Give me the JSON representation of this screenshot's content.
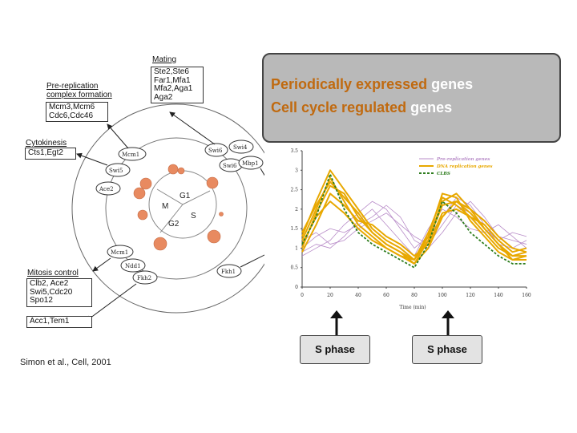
{
  "title_box": {
    "line1_highlight": "Periodically expressed",
    "line1_rest": "genes",
    "line2_highlight": "Cell cycle regulated",
    "line2_rest": "genes",
    "highlight_color": "#c06a10",
    "rest_color": "#ffffff"
  },
  "gene_groups": {
    "mating": {
      "title": "Mating",
      "genes": [
        "Ste2,Ste6",
        "Far1,Mfa1",
        "Mfa2,Aga1",
        "Aga2"
      ]
    },
    "prereplication": {
      "title_line1": "Pre-replication",
      "title_line2": "complex formation",
      "genes": [
        "Mcm3,Mcm6",
        "Cdc6,Cdc46"
      ]
    },
    "cytokinesis": {
      "title": "Cytokinesis",
      "genes": [
        "Cts1,Egt2"
      ]
    },
    "mitosis": {
      "title": "Mitosis control",
      "genes": [
        "Clb2, Ace2",
        "Swi5,Cdc20",
        "Spo12"
      ]
    },
    "extra": {
      "genes": [
        "Acc1,Tem1"
      ]
    }
  },
  "cycle_diagram": {
    "phases": {
      "g1": "G1",
      "s": "S",
      "g2": "G2",
      "m": "M"
    },
    "nodes": [
      "Mcm1",
      "Swi5",
      "Ace2",
      "Swi4",
      "Swi6",
      "Swi6",
      "Mbp1",
      "Mcm1",
      "Ndd1",
      "Fkh2",
      "Fkh1"
    ]
  },
  "chart_data": {
    "type": "line",
    "xlabel": "Time (min)",
    "ylabel": "",
    "x_ticks": [
      0,
      20,
      40,
      60,
      80,
      100,
      120,
      140,
      160
    ],
    "y_ticks": [
      0,
      0.5,
      1,
      1.5,
      2,
      2.5,
      3,
      3.5
    ],
    "xlim": [
      0,
      160
    ],
    "ylim": [
      0,
      3.5
    ],
    "x": [
      0,
      10,
      20,
      30,
      40,
      50,
      60,
      70,
      80,
      90,
      100,
      110,
      120,
      130,
      140,
      150,
      160
    ],
    "legend": [
      "Pre-replication genes",
      "DNA replication genes",
      "CLBS"
    ],
    "series": [
      {
        "name": "Pre-replication genes",
        "values": [
          0.8,
          1.0,
          1.2,
          1.6,
          1.9,
          2.2,
          2.0,
          1.5,
          1.0,
          1.3,
          1.8,
          2.3,
          2.1,
          1.6,
          1.1,
          1.0,
          1.2
        ]
      },
      {
        "name": "Pre-replication genes",
        "values": [
          1.0,
          1.3,
          1.5,
          1.4,
          1.6,
          1.8,
          2.1,
          1.8,
          1.2,
          1.0,
          1.4,
          1.9,
          2.2,
          1.8,
          1.3,
          1.2,
          1.1
        ]
      },
      {
        "name": "Pre-replication genes",
        "values": [
          0.9,
          1.1,
          1.0,
          1.3,
          1.7,
          2.0,
          1.6,
          1.2,
          0.8,
          1.5,
          2.0,
          1.8,
          1.5,
          1.4,
          1.6,
          1.3,
          1.0
        ]
      },
      {
        "name": "Pre-replication genes",
        "values": [
          1.2,
          1.4,
          1.1,
          1.2,
          1.5,
          1.7,
          1.9,
          1.6,
          1.3,
          1.1,
          1.6,
          2.1,
          1.9,
          1.5,
          1.2,
          1.4,
          1.3
        ]
      },
      {
        "name": "DNA replication genes",
        "values": [
          1.2,
          2.0,
          2.8,
          2.2,
          1.6,
          1.3,
          1.0,
          0.8,
          0.7,
          1.4,
          2.3,
          2.1,
          1.8,
          1.4,
          1.0,
          0.8,
          0.9
        ]
      },
      {
        "name": "DNA replication genes",
        "values": [
          1.0,
          1.9,
          2.6,
          2.4,
          1.8,
          1.4,
          1.1,
          0.9,
          0.6,
          1.2,
          2.1,
          2.2,
          1.9,
          1.5,
          1.1,
          0.7,
          0.8
        ]
      },
      {
        "name": "DNA replication genes",
        "values": [
          1.3,
          2.2,
          3.0,
          2.5,
          2.0,
          1.5,
          1.2,
          1.0,
          0.7,
          1.3,
          2.4,
          2.3,
          1.7,
          1.3,
          0.9,
          0.7,
          0.7
        ]
      },
      {
        "name": "DNA replication genes",
        "values": [
          0.9,
          1.6,
          2.4,
          2.1,
          1.7,
          1.6,
          1.3,
          1.1,
          0.8,
          1.1,
          1.9,
          2.0,
          1.8,
          1.6,
          1.2,
          0.9,
          1.0
        ]
      },
      {
        "name": "DNA replication genes",
        "values": [
          1.1,
          1.8,
          2.2,
          1.9,
          1.5,
          1.2,
          1.0,
          0.8,
          0.6,
          1.0,
          1.8,
          2.2,
          2.0,
          1.7,
          1.3,
          1.0,
          0.9
        ]
      },
      {
        "name": "DNA replication genes",
        "values": [
          1.4,
          2.1,
          2.7,
          2.3,
          1.9,
          1.4,
          1.1,
          0.9,
          0.7,
          1.2,
          2.2,
          2.4,
          2.0,
          1.5,
          1.1,
          0.8,
          0.8
        ]
      },
      {
        "name": "CLBS",
        "values": [
          1.1,
          1.8,
          2.9,
          2.0,
          1.4,
          1.1,
          0.9,
          0.7,
          0.5,
          1.1,
          2.2,
          1.9,
          1.4,
          1.1,
          0.8,
          0.6,
          0.6
        ]
      }
    ],
    "series_colors": {
      "Pre-replication genes": "#b88cc8",
      "DNA replication genes": "#e8a800",
      "CLBS": "#2e7d1e"
    }
  },
  "phase_labels": [
    "S phase",
    "S phase"
  ],
  "credit": "Simon et al., Cell, 2001"
}
